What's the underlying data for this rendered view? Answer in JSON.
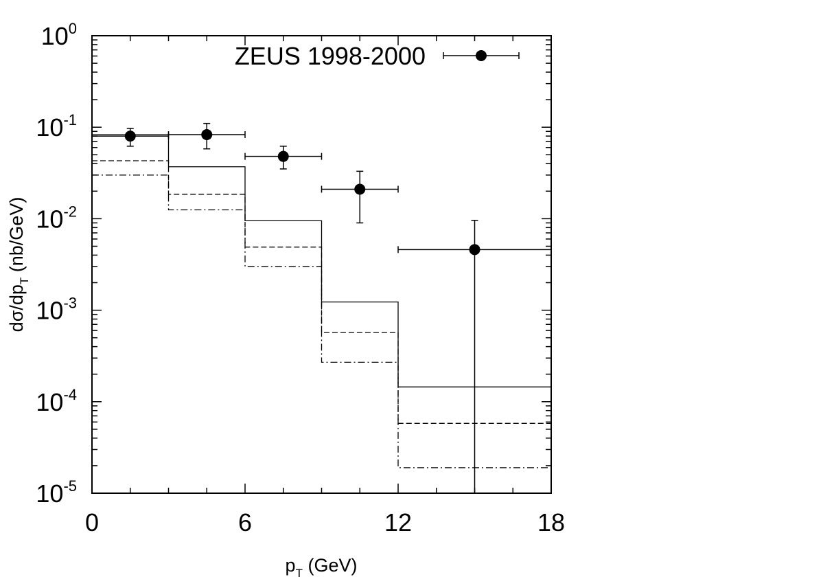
{
  "chart_data": {
    "type": "line",
    "xlabel": {
      "main": "p",
      "sub": "T",
      "rest": " (GeV)"
    },
    "ylabel": {
      "main": "dσ/dp",
      "sub": "T",
      "rest": " (nb/GeV)"
    },
    "xlim": [
      0,
      18
    ],
    "ylim": [
      1e-05,
      1
    ],
    "y_scale": "log",
    "grid": false,
    "legend_position": "top-right",
    "x_ticks": [
      {
        "value": 0,
        "label": "0"
      },
      {
        "value": 6,
        "label": "6"
      },
      {
        "value": 12,
        "label": "12"
      },
      {
        "value": 18,
        "label": "18"
      }
    ],
    "y_ticks": [
      {
        "value": 1,
        "base": "10",
        "exp": "0"
      },
      {
        "value": 0.1,
        "base": "10",
        "exp": "-1"
      },
      {
        "value": 0.01,
        "base": "10",
        "exp": "-2"
      },
      {
        "value": 0.001,
        "base": "10",
        "exp": "-3"
      },
      {
        "value": 0.0001,
        "base": "10",
        "exp": "-4"
      },
      {
        "value": 1e-05,
        "base": "10",
        "exp": "-5"
      }
    ],
    "data_series": {
      "name": "ZEUS 1998-2000",
      "points": [
        {
          "x": 1.5,
          "xerr": [
            0,
            3
          ],
          "y": 0.08,
          "yerr": [
            0.062,
            0.097
          ]
        },
        {
          "x": 4.5,
          "xerr": [
            3,
            6
          ],
          "y": 0.083,
          "yerr": [
            0.058,
            0.11
          ]
        },
        {
          "x": 7.5,
          "xerr": [
            6,
            9
          ],
          "y": 0.048,
          "yerr": [
            0.035,
            0.062
          ]
        },
        {
          "x": 10.5,
          "xerr": [
            9,
            12
          ],
          "y": 0.021,
          "yerr": [
            0.009,
            0.033
          ]
        },
        {
          "x": 15,
          "xerr": [
            12,
            18
          ],
          "y": 0.0046,
          "yerr": [
            1e-05,
            0.0096
          ]
        }
      ]
    },
    "histograms": [
      {
        "style": "solid",
        "edges": [
          0,
          3,
          6,
          9,
          12,
          18
        ],
        "values": [
          0.083,
          0.037,
          0.0095,
          0.00123,
          0.000145
        ]
      },
      {
        "style": "dashed",
        "edges": [
          0,
          3,
          6,
          9,
          12,
          18
        ],
        "values": [
          0.043,
          0.0185,
          0.0049,
          0.00057,
          5.8e-05
        ]
      },
      {
        "style": "dash-dot",
        "edges": [
          0,
          3,
          6,
          9,
          12,
          18
        ],
        "values": [
          0.03,
          0.0125,
          0.003,
          0.00027,
          1.9e-05
        ]
      }
    ]
  }
}
